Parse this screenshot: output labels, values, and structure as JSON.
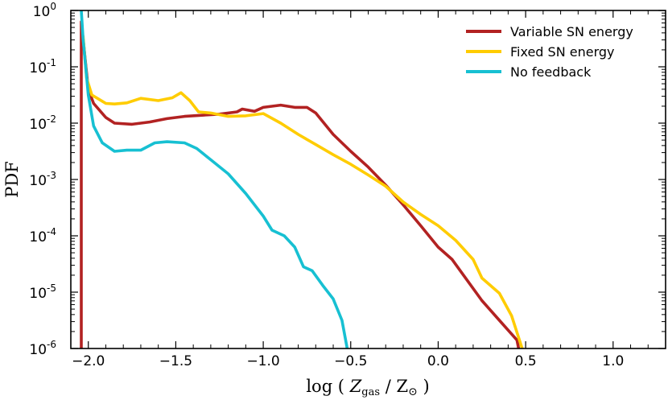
{
  "chart_data": {
    "type": "line",
    "xlabel": "log ( Z_gas / Z_⊙ )",
    "xlabel_parts": {
      "prefix": "log ( ",
      "var": "Z",
      "var_sub": "gas",
      "mid": " / Z",
      "sun": "⊙",
      "suffix": " )"
    },
    "ylabel": "PDF",
    "xlim": [
      -2.1,
      1.3
    ],
    "ylim_log10": [
      -6,
      0
    ],
    "y_scale": "log",
    "grid": false,
    "legend_position": "top-right",
    "x_ticks": [
      {
        "value": -2.0,
        "label": "−2.0"
      },
      {
        "value": -1.5,
        "label": "−1.5"
      },
      {
        "value": -1.0,
        "label": "−1.0"
      },
      {
        "value": -0.5,
        "label": "−0.5"
      },
      {
        "value": 0.0,
        "label": "0.0"
      },
      {
        "value": 0.5,
        "label": "0.5"
      },
      {
        "value": 1.0,
        "label": "1.0"
      }
    ],
    "y_ticks": [
      {
        "exp": 0,
        "base": "10",
        "sup": "0"
      },
      {
        "exp": -1,
        "base": "10",
        "sup": "-1"
      },
      {
        "exp": -2,
        "base": "10",
        "sup": "-2"
      },
      {
        "exp": -3,
        "base": "10",
        "sup": "-3"
      },
      {
        "exp": -4,
        "base": "10",
        "sup": "-4"
      },
      {
        "exp": -5,
        "base": "10",
        "sup": "-5"
      },
      {
        "exp": -6,
        "base": "10",
        "sup": "-6"
      }
    ],
    "series": [
      {
        "name": "Variable SN energy",
        "color": "#b22222",
        "points": [
          [
            -2.04,
            -6.0
          ],
          [
            -2.04,
            -0.2
          ],
          [
            -2.03,
            -0.5
          ],
          [
            -2.0,
            -1.4
          ],
          [
            -1.97,
            -1.65
          ],
          [
            -1.9,
            -1.9
          ],
          [
            -1.85,
            -2.0
          ],
          [
            -1.75,
            -2.02
          ],
          [
            -1.65,
            -1.98
          ],
          [
            -1.55,
            -1.92
          ],
          [
            -1.45,
            -1.88
          ],
          [
            -1.35,
            -1.86
          ],
          [
            -1.25,
            -1.84
          ],
          [
            -1.15,
            -1.8
          ],
          [
            -1.12,
            -1.75
          ],
          [
            -1.05,
            -1.79
          ],
          [
            -1.0,
            -1.72
          ],
          [
            -0.9,
            -1.68
          ],
          [
            -0.82,
            -1.72
          ],
          [
            -0.75,
            -1.72
          ],
          [
            -0.7,
            -1.82
          ],
          [
            -0.6,
            -2.2
          ],
          [
            -0.5,
            -2.5
          ],
          [
            -0.4,
            -2.78
          ],
          [
            -0.3,
            -3.1
          ],
          [
            -0.2,
            -3.45
          ],
          [
            -0.1,
            -3.82
          ],
          [
            0.0,
            -4.2
          ],
          [
            0.08,
            -4.42
          ],
          [
            0.15,
            -4.72
          ],
          [
            0.25,
            -5.15
          ],
          [
            0.35,
            -5.5
          ],
          [
            0.45,
            -5.85
          ],
          [
            0.46,
            -6.0
          ]
        ]
      },
      {
        "name": "Fixed SN energy",
        "color": "#ffcc00",
        "points": [
          [
            -2.03,
            -0.45
          ],
          [
            -2.01,
            -1.2
          ],
          [
            -1.98,
            -1.5
          ],
          [
            -1.9,
            -1.65
          ],
          [
            -1.85,
            -1.66
          ],
          [
            -1.78,
            -1.64
          ],
          [
            -1.7,
            -1.56
          ],
          [
            -1.6,
            -1.6
          ],
          [
            -1.52,
            -1.55
          ],
          [
            -1.47,
            -1.46
          ],
          [
            -1.42,
            -1.6
          ],
          [
            -1.37,
            -1.8
          ],
          [
            -1.3,
            -1.82
          ],
          [
            -1.2,
            -1.88
          ],
          [
            -1.1,
            -1.87
          ],
          [
            -1.0,
            -1.83
          ],
          [
            -0.9,
            -2.0
          ],
          [
            -0.8,
            -2.2
          ],
          [
            -0.7,
            -2.38
          ],
          [
            -0.6,
            -2.56
          ],
          [
            -0.5,
            -2.73
          ],
          [
            -0.4,
            -2.92
          ],
          [
            -0.3,
            -3.12
          ],
          [
            -0.2,
            -3.4
          ],
          [
            -0.1,
            -3.62
          ],
          [
            0.0,
            -3.82
          ],
          [
            0.1,
            -4.08
          ],
          [
            0.2,
            -4.42
          ],
          [
            0.25,
            -4.75
          ],
          [
            0.35,
            -5.02
          ],
          [
            0.42,
            -5.42
          ],
          [
            0.48,
            -6.0
          ]
        ]
      },
      {
        "name": "No feedback",
        "color": "#17c0d2",
        "points": [
          [
            -2.04,
            0.0
          ],
          [
            -2.03,
            -0.5
          ],
          [
            -2.0,
            -1.5
          ],
          [
            -1.97,
            -2.05
          ],
          [
            -1.92,
            -2.35
          ],
          [
            -1.85,
            -2.5
          ],
          [
            -1.78,
            -2.48
          ],
          [
            -1.7,
            -2.48
          ],
          [
            -1.62,
            -2.35
          ],
          [
            -1.55,
            -2.33
          ],
          [
            -1.45,
            -2.35
          ],
          [
            -1.38,
            -2.45
          ],
          [
            -1.3,
            -2.65
          ],
          [
            -1.2,
            -2.9
          ],
          [
            -1.1,
            -3.25
          ],
          [
            -1.0,
            -3.65
          ],
          [
            -0.95,
            -3.9
          ],
          [
            -0.88,
            -4.0
          ],
          [
            -0.82,
            -4.2
          ],
          [
            -0.77,
            -4.55
          ],
          [
            -0.72,
            -4.62
          ],
          [
            -0.66,
            -4.88
          ],
          [
            -0.6,
            -5.12
          ],
          [
            -0.55,
            -5.5
          ],
          [
            -0.52,
            -6.0
          ]
        ]
      }
    ]
  }
}
